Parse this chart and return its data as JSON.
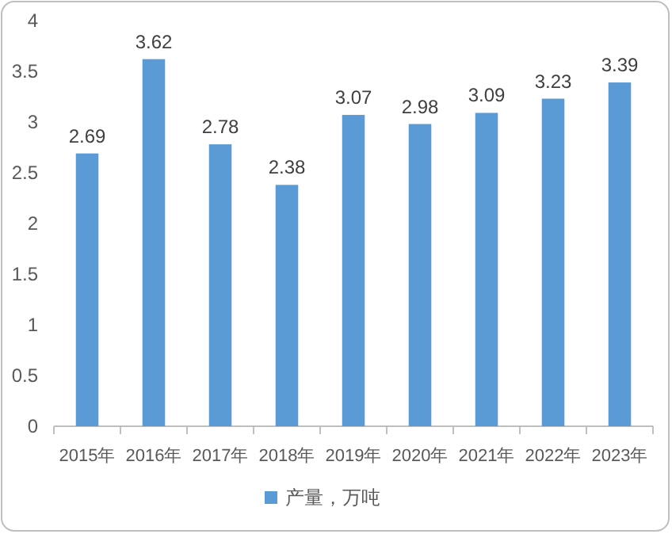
{
  "chart_data": {
    "type": "bar",
    "categories": [
      "2015年",
      "2016年",
      "2017年",
      "2018年",
      "2019年",
      "2020年",
      "2021年",
      "2022年",
      "2023年"
    ],
    "series": [
      {
        "name": "产量，万吨",
        "color": "#5b9bd5",
        "values": [
          2.69,
          3.62,
          2.78,
          2.38,
          3.07,
          2.98,
          3.09,
          3.23,
          3.39
        ]
      }
    ],
    "ylim": [
      0,
      4
    ],
    "yticks": [
      0,
      0.5,
      1,
      1.5,
      2,
      2.5,
      3,
      3.5,
      4
    ],
    "data_labels": true,
    "legend": "bottom"
  }
}
